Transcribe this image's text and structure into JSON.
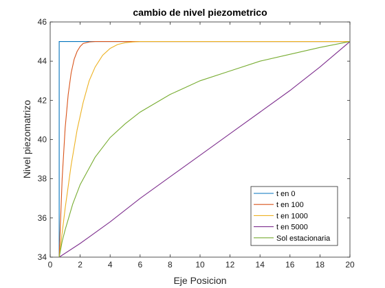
{
  "chart_data": {
    "type": "line",
    "title": "cambio de nivel piezometrico",
    "xlabel": "Eje Posicion",
    "ylabel": "Nivel piezomatrizo",
    "xlim": [
      0,
      20
    ],
    "ylim": [
      34,
      46
    ],
    "xticks": [
      "0",
      "2",
      "4",
      "6",
      "8",
      "10",
      "12",
      "14",
      "16",
      "18",
      "20"
    ],
    "yticks": [
      "34",
      "36",
      "38",
      "40",
      "42",
      "44",
      "46"
    ],
    "grid": false,
    "legend_position": "bottom-right",
    "series": [
      {
        "name": "t en 0",
        "color": "#0072BD",
        "points": [
          [
            0.6,
            34
          ],
          [
            0.6,
            45
          ],
          [
            20,
            45
          ]
        ]
      },
      {
        "name": "t en 100",
        "color": "#D95319",
        "points": [
          [
            0.6,
            34
          ],
          [
            0.8,
            38.0
          ],
          [
            1.0,
            40.6
          ],
          [
            1.2,
            42.3
          ],
          [
            1.4,
            43.4
          ],
          [
            1.6,
            44.1
          ],
          [
            1.8,
            44.5
          ],
          [
            2.0,
            44.75
          ],
          [
            2.2,
            44.9
          ],
          [
            2.6,
            44.98
          ],
          [
            3.0,
            45
          ],
          [
            20,
            45
          ]
        ]
      },
      {
        "name": "t en 1000",
        "color": "#EDB120",
        "points": [
          [
            0.6,
            34
          ],
          [
            1.0,
            36.5
          ],
          [
            1.4,
            38.7
          ],
          [
            1.8,
            40.5
          ],
          [
            2.2,
            41.9
          ],
          [
            2.6,
            43.0
          ],
          [
            3.0,
            43.7
          ],
          [
            3.5,
            44.3
          ],
          [
            4.0,
            44.65
          ],
          [
            4.5,
            44.85
          ],
          [
            5.0,
            44.94
          ],
          [
            5.5,
            44.98
          ],
          [
            6.0,
            45
          ],
          [
            20,
            45
          ]
        ]
      },
      {
        "name": "t en 5000",
        "color": "#7E2F8E",
        "points": [
          [
            0.6,
            34
          ],
          [
            2,
            34.7
          ],
          [
            4,
            35.8
          ],
          [
            6,
            37.0
          ],
          [
            8,
            38.1
          ],
          [
            10,
            39.2
          ],
          [
            12,
            40.3
          ],
          [
            14,
            41.4
          ],
          [
            16,
            42.5
          ],
          [
            18,
            43.7
          ],
          [
            20,
            45
          ]
        ]
      },
      {
        "name": "Sol estacionaria",
        "color": "#77AC30",
        "points": [
          [
            0.6,
            34
          ],
          [
            0.8,
            34.8
          ],
          [
            1.0,
            35.4
          ],
          [
            1.5,
            36.7
          ],
          [
            2,
            37.7
          ],
          [
            3,
            39.1
          ],
          [
            4,
            40.1
          ],
          [
            5,
            40.8
          ],
          [
            6,
            41.4
          ],
          [
            8,
            42.3
          ],
          [
            10,
            43.0
          ],
          [
            12,
            43.5
          ],
          [
            14,
            44.0
          ],
          [
            16,
            44.35
          ],
          [
            18,
            44.7
          ],
          [
            20,
            45
          ]
        ]
      }
    ]
  }
}
